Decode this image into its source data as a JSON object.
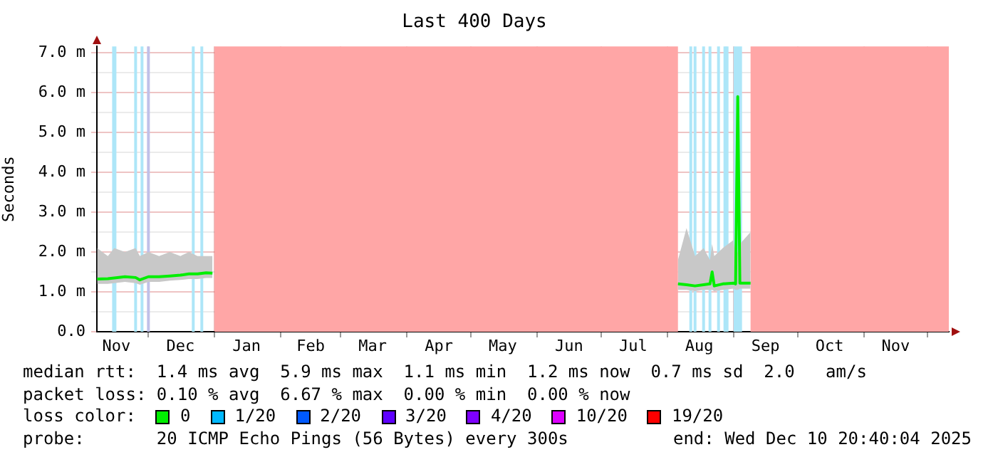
{
  "chart_data": {
    "type": "line",
    "title": "Last 400 Days",
    "ylabel": "Seconds",
    "x": [
      "2024-11-07",
      "2024-11-12",
      "2024-11-15",
      "2024-11-20",
      "2024-11-25",
      "2024-11-27",
      "2024-12-01",
      "2024-12-06",
      "2024-12-11",
      "2024-12-16",
      "2024-12-20",
      "2024-12-24",
      "2024-12-28",
      "2024-12-31",
      "2025-04-15",
      "2025-08-06",
      "2025-08-10",
      "2025-08-14",
      "2025-08-18",
      "2025-08-21",
      "2025-08-22",
      "2025-08-23",
      "2025-08-27",
      "2025-09-01",
      "2025-09-02",
      "2025-09-03",
      "2025-09-04",
      "2025-09-09"
    ],
    "series": [
      {
        "name": "0",
        "color": "#00ee00",
        "values": [
          1.32,
          1.33,
          1.35,
          1.38,
          1.36,
          1.3,
          1.38,
          1.38,
          1.4,
          1.42,
          1.45,
          1.45,
          1.48,
          1.47,
          null,
          1.2,
          1.18,
          1.15,
          1.18,
          1.2,
          1.5,
          1.15,
          1.2,
          1.22,
          1.2,
          5.9,
          1.22,
          1.22
        ],
        "lower": [
          1.2,
          1.2,
          1.22,
          1.25,
          1.22,
          1.18,
          1.25,
          1.25,
          1.28,
          1.3,
          1.32,
          1.32,
          1.35,
          1.35,
          null,
          1.05,
          1.05,
          1.02,
          1.05,
          1.05,
          1.05,
          1.02,
          1.05,
          1.08,
          1.05,
          1.05,
          1.08,
          1.08
        ],
        "upper": [
          2.1,
          1.9,
          2.1,
          2.0,
          2.1,
          1.9,
          2.0,
          1.9,
          2.0,
          1.9,
          2.0,
          1.9,
          1.9,
          1.9,
          null,
          1.8,
          2.6,
          1.9,
          2.1,
          1.8,
          2.2,
          1.9,
          2.1,
          2.3,
          1.9,
          2.0,
          2.2,
          2.5
        ]
      },
      {
        "name": "1/20",
        "color": "#00b8ff",
        "values": [
          null,
          null,
          null,
          null,
          null,
          null,
          null,
          null,
          null,
          null,
          null,
          null,
          null,
          null,
          null,
          null,
          null,
          null,
          null,
          null,
          null,
          null,
          null,
          null,
          null,
          null,
          null,
          null
        ]
      },
      {
        "name": "2/20",
        "color": "#0059ff",
        "values": [
          null,
          null,
          null,
          null,
          null,
          null,
          null,
          null,
          null,
          null,
          null,
          null,
          null,
          null,
          null,
          null,
          null,
          null,
          null,
          null,
          null,
          null,
          null,
          null,
          null,
          null,
          null,
          null
        ]
      },
      {
        "name": "3/20",
        "color": "#5e00ff",
        "values": [
          null,
          null,
          null,
          null,
          null,
          null,
          null,
          null,
          null,
          null,
          null,
          null,
          null,
          null,
          null,
          null,
          null,
          null,
          null,
          null,
          null,
          null,
          null,
          null,
          null,
          null,
          null,
          null
        ]
      },
      {
        "name": "4/20",
        "color": "#7e00ff",
        "values": [
          null,
          null,
          null,
          null,
          null,
          null,
          null,
          null,
          null,
          null,
          null,
          null,
          null,
          null,
          null,
          null,
          null,
          null,
          null,
          null,
          null,
          null,
          null,
          null,
          null,
          null,
          null,
          null
        ]
      },
      {
        "name": "10/20",
        "color": "#dd00ff",
        "values": [
          null,
          null,
          null,
          null,
          null,
          null,
          null,
          null,
          null,
          null,
          null,
          null,
          null,
          null,
          null,
          null,
          null,
          null,
          null,
          null,
          null,
          null,
          null,
          null,
          null,
          null,
          null,
          null
        ]
      },
      {
        "name": "19/20",
        "color": "#ff0000",
        "values": [
          null,
          null,
          null,
          null,
          null,
          null,
          null,
          null,
          null,
          null,
          null,
          null,
          null,
          null,
          null,
          null,
          null,
          null,
          null,
          null,
          null,
          null,
          null,
          null,
          null,
          null,
          null,
          null
        ]
      }
    ],
    "legend_title": "loss color:",
    "legend": "bottom",
    "grid": true,
    "marker": "none",
    "line_style": "solid",
    "xlim": [
      "2024-11-06T20:40",
      "2025-12-10T20:40"
    ],
    "xticks": [
      {
        "value": "2024-11-16",
        "label": "Nov"
      },
      {
        "value": "2024-12-01",
        "label": null
      },
      {
        "value": "2024-12-16",
        "label": "Dec"
      },
      {
        "value": "2025-01-01",
        "label": null
      },
      {
        "value": "2025-01-16",
        "label": "Jan"
      },
      {
        "value": "2025-02-01",
        "label": null
      },
      {
        "value": "2025-02-15",
        "label": "Feb"
      },
      {
        "value": "2025-03-01",
        "label": null
      },
      {
        "value": "2025-03-16",
        "label": "Mar"
      },
      {
        "value": "2025-04-01",
        "label": null
      },
      {
        "value": "2025-04-16",
        "label": "Apr"
      },
      {
        "value": "2025-05-01",
        "label": null
      },
      {
        "value": "2025-05-16",
        "label": "May"
      },
      {
        "value": "2025-06-01",
        "label": null
      },
      {
        "value": "2025-06-16",
        "label": "Jun"
      },
      {
        "value": "2025-07-01",
        "label": null
      },
      {
        "value": "2025-07-16",
        "label": "Jul"
      },
      {
        "value": "2025-08-01",
        "label": null
      },
      {
        "value": "2025-08-16",
        "label": "Aug"
      },
      {
        "value": "2025-09-01",
        "label": null
      },
      {
        "value": "2025-09-16",
        "label": "Sep"
      },
      {
        "value": "2025-10-01",
        "label": null
      },
      {
        "value": "2025-10-16",
        "label": "Oct"
      },
      {
        "value": "2025-11-01",
        "label": null
      },
      {
        "value": "2025-11-16",
        "label": "Nov"
      },
      {
        "value": "2025-12-01",
        "label": null
      }
    ],
    "ylim": [
      0,
      7.16
    ],
    "yticks": [
      {
        "value": 0,
        "label": "0.0"
      },
      {
        "value": 0.5,
        "label": null
      },
      {
        "value": 1,
        "label": "1.0 m"
      },
      {
        "value": 1.5,
        "label": null
      },
      {
        "value": 2,
        "label": "2.0 m"
      },
      {
        "value": 2.5,
        "label": null
      },
      {
        "value": 3,
        "label": "3.0 m"
      },
      {
        "value": 3.5,
        "label": null
      },
      {
        "value": 4,
        "label": "4.0 m"
      },
      {
        "value": 4.5,
        "label": null
      },
      {
        "value": 5,
        "label": "5.0 m"
      },
      {
        "value": 5.5,
        "label": null
      },
      {
        "value": 6,
        "label": "6.0 m"
      },
      {
        "value": 6.5,
        "label": null
      },
      {
        "value": 7,
        "label": "7.0 m"
      }
    ],
    "bands": [
      {
        "axis": "x",
        "from": "2025-01-01",
        "to": "2025-08-06",
        "color": "#ffa6a6"
      },
      {
        "axis": "x",
        "from": "2025-09-09",
        "to": "2025-12-10T20:40",
        "color": "#ffa6a6"
      },
      {
        "axis": "x",
        "from": "2024-11-14",
        "to": "2024-11-16",
        "color": "#ade6f8"
      },
      {
        "axis": "x",
        "from": "2025-09-01",
        "to": "2025-09-05",
        "color": "#ade6f8"
      }
    ],
    "ref_lines": [
      {
        "axis": "x",
        "value": "2024-11-25",
        "color": "#ade6f8"
      },
      {
        "axis": "x",
        "value": "2024-11-28",
        "color": "#ade6f8"
      },
      {
        "axis": "x",
        "value": "2024-12-01",
        "color": "#c0c0e8"
      },
      {
        "axis": "x",
        "value": "2024-12-22",
        "color": "#ade6f8"
      },
      {
        "axis": "x",
        "value": "2024-12-26",
        "color": "#ade6f8"
      },
      {
        "axis": "x",
        "value": "2025-08-12",
        "color": "#ade6f8"
      },
      {
        "axis": "x",
        "value": "2025-08-14",
        "color": "#ade6f8"
      },
      {
        "axis": "x",
        "value": "2025-08-18",
        "color": "#ade6f8"
      },
      {
        "axis": "x",
        "value": "2025-08-21",
        "color": "#ade6f8"
      },
      {
        "axis": "x",
        "value": "2025-08-25",
        "color": "#ade6f8"
      },
      {
        "axis": "x",
        "value": "2025-08-28",
        "color": "#ade6f8"
      },
      {
        "axis": "x",
        "value": "2025-08-29",
        "color": "#ade6f8"
      }
    ],
    "annotations": [
      "median rtt:  1.4 ms avg  5.9 ms max  1.1 ms min  1.2 ms now  0.7 ms sd  2.0   am/s",
      "packet loss: 0.10 % avg  6.67 % max  0.00 % min  0.00 % now",
      "probe:       20 ICMP Echo Pings (56 Bytes) every 300s",
      "end: Wed Dec 10 20:40:04 2025"
    ]
  }
}
